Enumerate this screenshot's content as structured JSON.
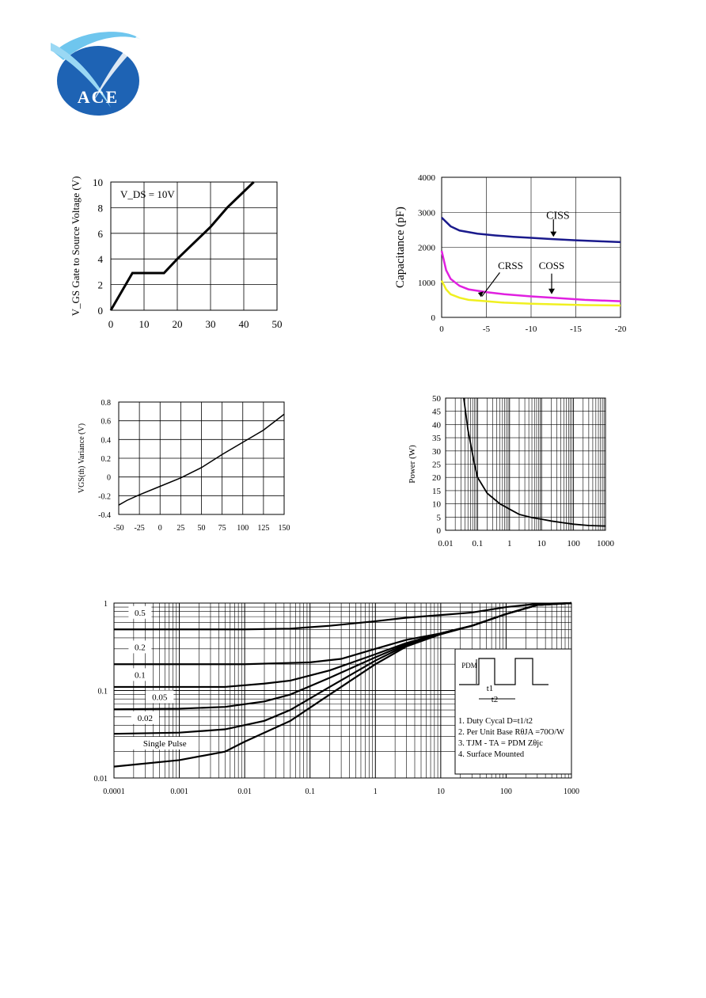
{
  "logo": {
    "text": "ACE",
    "brand_color": "#1e63b4",
    "swoosh_color": "#6fc6ee"
  },
  "chart_data": [
    {
      "id": "gate-charge",
      "type": "line",
      "title": "",
      "xlabel": "",
      "ylabel": "V_GS Gate to Source Voltage (V)",
      "annotation": "V_DS = 10V",
      "xlim": [
        0,
        50
      ],
      "ylim": [
        0,
        10
      ],
      "xticks": [
        0,
        10,
        20,
        30,
        40,
        50
      ],
      "yticks": [
        0,
        2,
        4,
        6,
        8,
        10
      ],
      "grid": true,
      "series": [
        {
          "color": "#000000",
          "points": [
            [
              0,
              0
            ],
            [
              6.5,
              2.9
            ],
            [
              16,
              2.9
            ],
            [
              20,
              4
            ],
            [
              30,
              6.5
            ],
            [
              35,
              8
            ],
            [
              43,
              10
            ]
          ]
        }
      ]
    },
    {
      "id": "capacitance",
      "type": "line",
      "title": "",
      "xlabel": "",
      "ylabel": "Capacitance (pF)",
      "xlim": [
        0,
        -20
      ],
      "ylim": [
        0,
        4000
      ],
      "xticks": [
        0,
        -5,
        -10,
        -15,
        -20
      ],
      "yticks": [
        0,
        1000,
        2000,
        3000,
        4000
      ],
      "grid": true,
      "labels": [
        "CISS",
        "CRSS",
        "COSS"
      ],
      "series": [
        {
          "name": "CISS",
          "color": "#1a1a8c",
          "points": [
            [
              0,
              2850
            ],
            [
              -1,
              2600
            ],
            [
              -2,
              2480
            ],
            [
              -4,
              2390
            ],
            [
              -6,
              2340
            ],
            [
              -8,
              2300
            ],
            [
              -10,
              2270
            ],
            [
              -12,
              2240
            ],
            [
              -15,
              2200
            ],
            [
              -18,
              2170
            ],
            [
              -20,
              2150
            ]
          ]
        },
        {
          "name": "CRSS",
          "color": "#e020e0",
          "points": [
            [
              0,
              1900
            ],
            [
              -0.5,
              1350
            ],
            [
              -1,
              1100
            ],
            [
              -2,
              900
            ],
            [
              -3,
              800
            ],
            [
              -5,
              720
            ],
            [
              -7,
              660
            ],
            [
              -10,
              600
            ],
            [
              -13,
              550
            ],
            [
              -16,
              500
            ],
            [
              -20,
              460
            ]
          ]
        },
        {
          "name": "COSS",
          "color": "#f0f020",
          "points": [
            [
              0,
              1050
            ],
            [
              -0.5,
              800
            ],
            [
              -1,
              660
            ],
            [
              -2,
              560
            ],
            [
              -3,
              500
            ],
            [
              -5,
              460
            ],
            [
              -7,
              420
            ],
            [
              -10,
              390
            ],
            [
              -13,
              370
            ],
            [
              -16,
              350
            ],
            [
              -20,
              340
            ]
          ]
        }
      ]
    },
    {
      "id": "vgs-variance",
      "type": "line",
      "title": "",
      "xlabel": "",
      "ylabel": "VGS(th) Variance (V)",
      "xlim": [
        -50,
        150
      ],
      "ylim": [
        -0.4,
        0.8
      ],
      "xticks": [
        -50,
        -25,
        0,
        25,
        50,
        75,
        100,
        125,
        150
      ],
      "yticks": [
        0.8,
        0.6,
        0.4,
        0.2,
        0,
        -0.2,
        -0.4
      ],
      "grid": true,
      "series": [
        {
          "color": "#000000",
          "points": [
            [
              -50,
              -0.3
            ],
            [
              -40,
              -0.25
            ],
            [
              -25,
              -0.19
            ],
            [
              0,
              -0.1
            ],
            [
              25,
              -0.01
            ],
            [
              50,
              0.1
            ],
            [
              75,
              0.24
            ],
            [
              100,
              0.37
            ],
            [
              125,
              0.5
            ],
            [
              150,
              0.67
            ]
          ]
        }
      ]
    },
    {
      "id": "single-pulse-power",
      "type": "line",
      "title": "",
      "xlabel": "",
      "ylabel": "Power (W)",
      "x_scale": "log",
      "xlim": [
        0.01,
        1000
      ],
      "ylim": [
        0,
        50
      ],
      "xticks": [
        "0.01",
        "0.1",
        "1",
        "10",
        "100",
        "1000"
      ],
      "yticks": [
        0,
        5,
        10,
        15,
        20,
        25,
        30,
        35,
        40,
        45,
        50
      ],
      "grid": true,
      "series": [
        {
          "color": "#000000",
          "points": [
            [
              0.037,
              50
            ],
            [
              0.05,
              38
            ],
            [
              0.08,
              25
            ],
            [
              0.1,
              20
            ],
            [
              0.2,
              14
            ],
            [
              0.5,
              10
            ],
            [
              1,
              8
            ],
            [
              2,
              6
            ],
            [
              5,
              4.8
            ],
            [
              10,
              4.2
            ],
            [
              20,
              3.5
            ],
            [
              50,
              2.8
            ],
            [
              100,
              2.3
            ],
            [
              300,
              1.8
            ],
            [
              1000,
              1.6
            ]
          ]
        }
      ]
    },
    {
      "id": "transient-thermal",
      "type": "line",
      "title": "",
      "xlabel": "",
      "ylabel": "",
      "x_scale": "log",
      "y_scale": "log",
      "xlim": [
        0.0001,
        1000
      ],
      "ylim": [
        0.01,
        1
      ],
      "xticks": [
        "0.0001",
        "0.001",
        "0.01",
        "0.1",
        "1",
        "10",
        "100",
        "1000"
      ],
      "yticks": [
        "1",
        "0.1",
        "0.01"
      ],
      "grid": true,
      "curve_labels": [
        "0.5",
        "0.2",
        "0.1",
        "0.05",
        "0.02",
        "Single Pulse"
      ],
      "series": [
        {
          "label": "0.5",
          "color": "#000000",
          "points": [
            [
              0.0001,
              0.5
            ],
            [
              0.001,
              0.5
            ],
            [
              0.01,
              0.5
            ],
            [
              0.05,
              0.51
            ],
            [
              0.2,
              0.55
            ],
            [
              1,
              0.62
            ],
            [
              3,
              0.68
            ],
            [
              10,
              0.73
            ],
            [
              30,
              0.78
            ],
            [
              100,
              0.9
            ],
            [
              300,
              0.98
            ],
            [
              1000,
              1
            ]
          ]
        },
        {
          "label": "0.2",
          "color": "#000000",
          "points": [
            [
              0.0001,
              0.2
            ],
            [
              0.001,
              0.2
            ],
            [
              0.01,
              0.2
            ],
            [
              0.1,
              0.21
            ],
            [
              0.3,
              0.23
            ],
            [
              1,
              0.3
            ],
            [
              3,
              0.38
            ],
            [
              10,
              0.45
            ],
            [
              30,
              0.55
            ],
            [
              100,
              0.75
            ],
            [
              300,
              0.95
            ],
            [
              1000,
              1
            ]
          ]
        },
        {
          "label": "0.1",
          "color": "#000000",
          "points": [
            [
              0.0001,
              0.11
            ],
            [
              0.001,
              0.11
            ],
            [
              0.005,
              0.11
            ],
            [
              0.02,
              0.12
            ],
            [
              0.05,
              0.13
            ],
            [
              0.2,
              0.17
            ],
            [
              1,
              0.26
            ],
            [
              3,
              0.35
            ],
            [
              10,
              0.45
            ],
            [
              30,
              0.55
            ],
            [
              100,
              0.75
            ],
            [
              300,
              0.95
            ],
            [
              1000,
              1
            ]
          ]
        },
        {
          "label": "0.05",
          "color": "#000000",
          "points": [
            [
              0.0001,
              0.061
            ],
            [
              0.001,
              0.062
            ],
            [
              0.005,
              0.065
            ],
            [
              0.02,
              0.075
            ],
            [
              0.05,
              0.09
            ],
            [
              0.2,
              0.14
            ],
            [
              1,
              0.24
            ],
            [
              3,
              0.34
            ],
            [
              10,
              0.45
            ],
            [
              30,
              0.55
            ],
            [
              100,
              0.75
            ],
            [
              300,
              0.95
            ],
            [
              1000,
              1
            ]
          ]
        },
        {
          "label": "0.02",
          "color": "#000000",
          "points": [
            [
              0.0001,
              0.032
            ],
            [
              0.001,
              0.033
            ],
            [
              0.005,
              0.036
            ],
            [
              0.02,
              0.045
            ],
            [
              0.05,
              0.06
            ],
            [
              0.2,
              0.11
            ],
            [
              1,
              0.22
            ],
            [
              3,
              0.33
            ],
            [
              10,
              0.45
            ],
            [
              30,
              0.55
            ],
            [
              100,
              0.75
            ],
            [
              300,
              0.95
            ],
            [
              1000,
              1
            ]
          ]
        },
        {
          "label": "Single Pulse",
          "color": "#000000",
          "points": [
            [
              0.0001,
              0.0135
            ],
            [
              0.001,
              0.016
            ],
            [
              0.005,
              0.02
            ],
            [
              0.01,
              0.026
            ],
            [
              0.05,
              0.045
            ],
            [
              0.2,
              0.09
            ],
            [
              1,
              0.2
            ],
            [
              3,
              0.32
            ],
            [
              10,
              0.44
            ],
            [
              30,
              0.55
            ],
            [
              100,
              0.75
            ],
            [
              300,
              0.95
            ],
            [
              1000,
              1
            ]
          ]
        }
      ],
      "inset": {
        "pdm_label": "PDM",
        "t1_label": "t1",
        "t2_label": "t2",
        "notes": [
          "1. Duty Cycal D=t1/t2",
          "2. Per Unit Base RθJA =70O/W",
          "3. TJM - TA = PDM Zθjc",
          "4. Surface Mounted"
        ]
      }
    }
  ]
}
